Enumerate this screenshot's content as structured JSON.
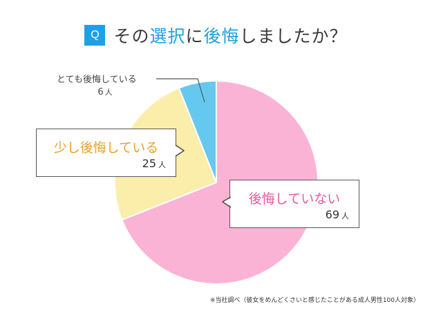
{
  "header": {
    "badge": "Q",
    "title_parts": [
      "その",
      "選択",
      "に",
      "後悔",
      "しましたか？"
    ]
  },
  "chart_data": {
    "type": "pie",
    "unit": "人",
    "categories": [
      "後悔していない",
      "少し後悔している",
      "とても後悔している"
    ],
    "values": [
      69,
      25,
      6
    ],
    "colors": [
      "#fbb3d5",
      "#fbedaa",
      "#65c9ef"
    ]
  },
  "footnote": "※当社調べ（彼女をめんどくさいと感じたことがある成人男性100人対象）"
}
